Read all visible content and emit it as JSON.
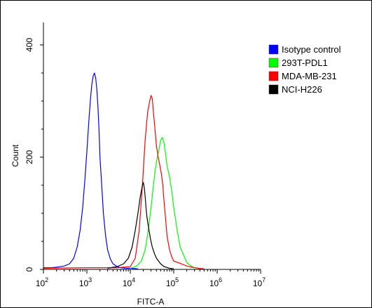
{
  "chart_data": {
    "type": "line",
    "xlabel": "FITC-A",
    "ylabel": "Count",
    "x_scale": "log",
    "xlim": [
      100,
      10000000
    ],
    "ylim": [
      0,
      430
    ],
    "x_ticks": [
      {
        "value": 100,
        "base": "10",
        "exp": "2"
      },
      {
        "value": 1000,
        "base": "10",
        "exp": "3"
      },
      {
        "value": 10000,
        "base": "10",
        "exp": "4"
      },
      {
        "value": 100000,
        "base": "10",
        "exp": "5"
      },
      {
        "value": 1000000,
        "base": "10",
        "exp": "6"
      },
      {
        "value": 10000000,
        "base": "10",
        "exp": "7"
      }
    ],
    "y_ticks": [
      {
        "value": 0,
        "label": "0"
      },
      {
        "value": 200,
        "label": "200"
      },
      {
        "value": 400,
        "label": "400"
      }
    ],
    "legend_position": "top-right",
    "series": [
      {
        "name": "Isotype control",
        "color": "#0000ff",
        "x": [
          100,
          150,
          200,
          300,
          400,
          500,
          600,
          700,
          800,
          900,
          1000,
          1100,
          1200,
          1300,
          1400,
          1500,
          1600,
          1700,
          1800,
          1900,
          2000,
          2200,
          2400,
          2700,
          3000,
          3500,
          4000,
          5000,
          6000,
          8000,
          10000,
          15000
        ],
        "y": [
          3,
          3,
          4,
          6,
          10,
          20,
          40,
          70,
          110,
          160,
          210,
          260,
          300,
          330,
          345,
          350,
          340,
          320,
          290,
          250,
          200,
          150,
          100,
          60,
          35,
          18,
          10,
          5,
          3,
          2,
          2,
          1
        ]
      },
      {
        "name": "293T-PDL1",
        "color": "#00ff00",
        "x": [
          10000,
          14000,
          18000,
          22000,
          26000,
          30000,
          34000,
          38000,
          42000,
          46000,
          50000,
          55000,
          60000,
          65000,
          70000,
          80000,
          90000,
          100000,
          120000,
          140000,
          170000,
          200000,
          250000,
          300000,
          400000
        ],
        "y": [
          2,
          6,
          15,
          35,
          70,
          110,
          150,
          180,
          200,
          215,
          230,
          235,
          225,
          205,
          185,
          165,
          140,
          110,
          70,
          40,
          25,
          12,
          6,
          3,
          1
        ]
      },
      {
        "name": "MDA-MB-231",
        "color": "#ff0000",
        "x": [
          100,
          1000,
          5000,
          10000,
          13000,
          16000,
          19000,
          22000,
          25000,
          28000,
          30000,
          32000,
          34000,
          36000,
          38000,
          40000,
          44000,
          48000,
          52000,
          56000,
          60000,
          65000,
          70000,
          80000,
          90000,
          100000,
          150000,
          200000,
          300000,
          500000
        ],
        "y": [
          2,
          3,
          3,
          5,
          20,
          70,
          150,
          230,
          280,
          300,
          310,
          305,
          280,
          260,
          240,
          220,
          200,
          185,
          170,
          150,
          120,
          90,
          60,
          35,
          22,
          15,
          10,
          6,
          3,
          1
        ]
      },
      {
        "name": "NCI-H226",
        "color": "#000000",
        "x": [
          3000,
          5000,
          7000,
          9000,
          11000,
          13000,
          15000,
          17000,
          19000,
          20000,
          21000,
          22000,
          23000,
          24000,
          25000,
          27000,
          29000,
          32000,
          36000,
          40000,
          50000,
          60000,
          80000,
          100000
        ],
        "y": [
          2,
          5,
          10,
          20,
          40,
          70,
          100,
          130,
          150,
          155,
          145,
          130,
          110,
          95,
          85,
          70,
          55,
          40,
          28,
          20,
          10,
          5,
          2,
          1
        ]
      }
    ]
  }
}
